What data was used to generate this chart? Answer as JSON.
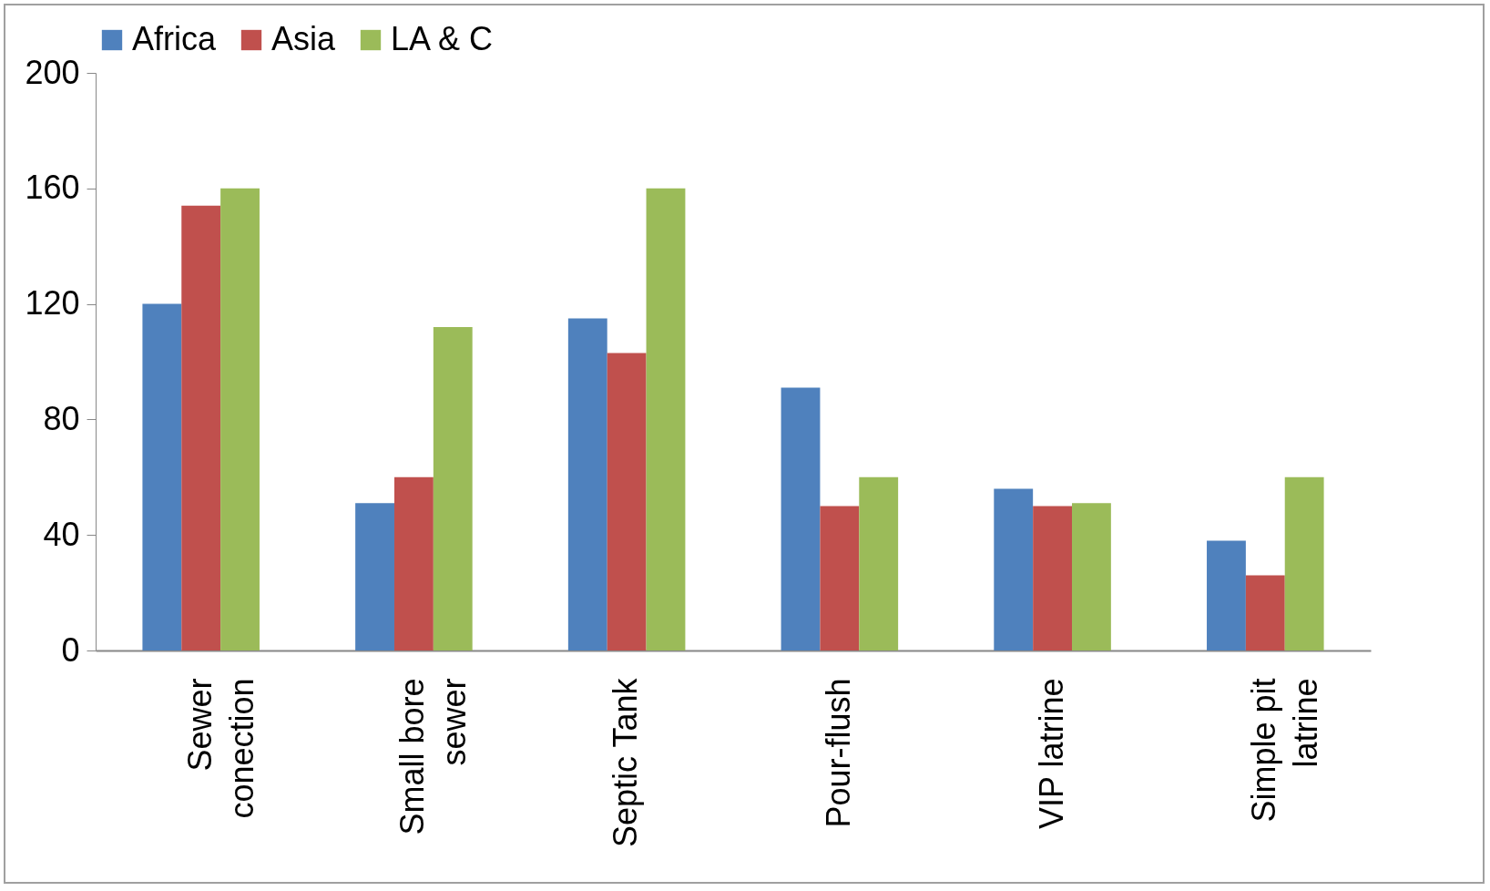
{
  "chart_data": {
    "type": "bar",
    "categories": [
      "Sewer conection",
      "Small bore sewer",
      "Septic Tank",
      "Pour-flush",
      "VIP latrine",
      "Simple pit latrine"
    ],
    "series": [
      {
        "name": "Africa",
        "color": "#4f81bd",
        "values": [
          120,
          51,
          115,
          91,
          56,
          38
        ]
      },
      {
        "name": "Asia",
        "color": "#c0504d",
        "values": [
          154,
          60,
          103,
          50,
          50,
          26
        ]
      },
      {
        "name": "LA & C",
        "color": "#9bbb59",
        "values": [
          160,
          112,
          160,
          60,
          51,
          60
        ]
      }
    ],
    "ylim": [
      0,
      200
    ],
    "yticks": [
      0,
      40,
      80,
      120,
      160,
      200
    ],
    "grid": false,
    "legend": "top"
  }
}
